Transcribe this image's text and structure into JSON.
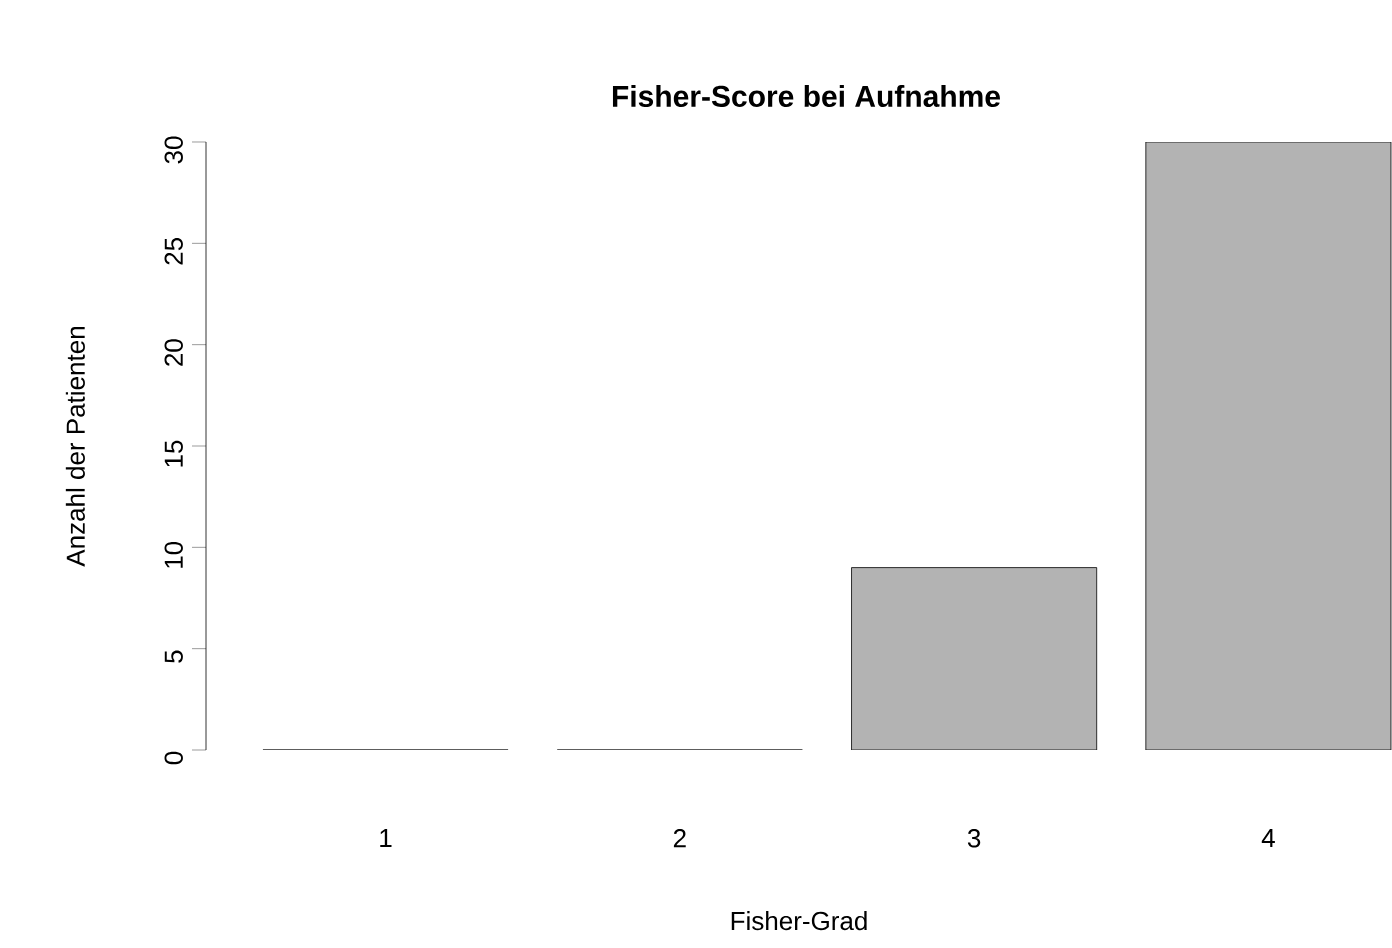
{
  "chart_data": {
    "type": "bar",
    "title": "Fisher-Score bei Aufnahme",
    "xlabel": "Fisher-Grad",
    "ylabel": "Anzahl der Patienten",
    "categories": [
      "1",
      "2",
      "3",
      "4"
    ],
    "values": [
      0,
      0,
      9,
      30
    ],
    "color": "#b3b3b3",
    "ylim": [
      0,
      30
    ],
    "yticks": [
      0,
      5,
      10,
      15,
      20,
      25,
      30
    ],
    "grid": false
  }
}
